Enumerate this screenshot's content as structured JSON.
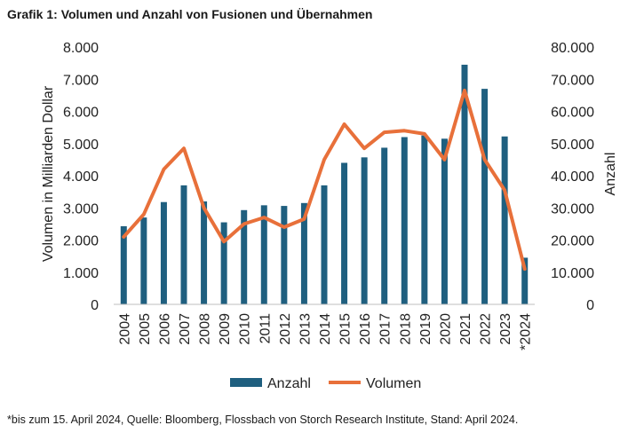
{
  "title": "Grafik 1: Volumen und Anzahl von Fusionen und Übernahmen",
  "footnote": "*bis zum 15. April 2024, Quelle: Bloomberg, Flossbach von Storch Research Institute, Stand: April 2024.",
  "colors": {
    "bars": "#1f5f7f",
    "line": "#e8703a"
  },
  "chart_data": {
    "type": "bar+line",
    "categories": [
      "2004",
      "2005",
      "2006",
      "2007",
      "2008",
      "2009",
      "2010",
      "2011",
      "2012",
      "2013",
      "2014",
      "2015",
      "2016",
      "2017",
      "2018",
      "2019",
      "2020",
      "2021",
      "2022",
      "2023",
      "*2024"
    ],
    "series": [
      {
        "name": "Anzahl",
        "type": "bar",
        "axis": "right",
        "values": [
          24300,
          27000,
          31800,
          37000,
          32000,
          25500,
          29300,
          30800,
          30600,
          31500,
          37000,
          44000,
          45700,
          48700,
          52000,
          52500,
          51500,
          74500,
          67000,
          52200,
          14500
        ]
      },
      {
        "name": "Volumen",
        "type": "line",
        "axis": "left",
        "values": [
          2100,
          2800,
          4200,
          4850,
          3000,
          1950,
          2500,
          2700,
          2400,
          2650,
          4500,
          5600,
          4850,
          5350,
          5400,
          5300,
          4500,
          6650,
          4500,
          3550,
          1100
        ]
      }
    ],
    "yleft": {
      "label": "Volumen in Milliarden Dollar",
      "ylim": [
        0,
        8000
      ],
      "ticks": [
        "0",
        "1.000",
        "2.000",
        "3.000",
        "4.000",
        "5.000",
        "6.000",
        "7.000",
        "8.000"
      ]
    },
    "yright": {
      "label": "Anzahl",
      "ylim": [
        0,
        80000
      ],
      "ticks": [
        "0",
        "10.000",
        "20.000",
        "30.000",
        "40.000",
        "50.000",
        "60.000",
        "70.000",
        "80.000"
      ]
    },
    "legend": [
      "Anzahl",
      "Volumen"
    ],
    "legend_position": "bottom"
  }
}
